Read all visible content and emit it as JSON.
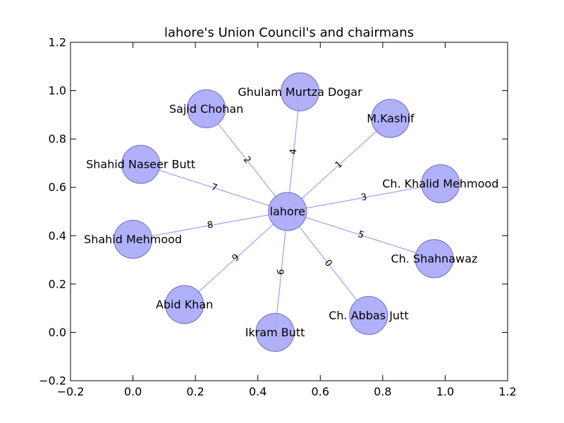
{
  "chart_data": {
    "type": "network",
    "title": "lahore's Union Council's and chairmans",
    "xlim": [
      -0.2,
      1.2
    ],
    "ylim": [
      -0.2,
      1.2
    ],
    "xticks": [
      "−0.2",
      "0.0",
      "0.2",
      "0.4",
      "0.6",
      "0.8",
      "1.0",
      "1.2"
    ],
    "yticks": [
      "−0.2",
      "0.0",
      "0.2",
      "0.4",
      "0.6",
      "0.8",
      "1.0",
      "1.2"
    ],
    "node_color": "#a8a8f8",
    "node_edge_color": "#7a7acc",
    "edge_color": "#8888ee",
    "center": {
      "label": "lahore",
      "x": 0.495,
      "y": 0.5
    },
    "nodes": [
      {
        "label": "Ch. Abbas Jutt",
        "x": 0.755,
        "y": 0.07,
        "edge_label": "0"
      },
      {
        "label": "M.Kashif",
        "x": 0.825,
        "y": 0.885,
        "edge_label": "1"
      },
      {
        "label": "Sajid Chohan",
        "x": 0.235,
        "y": 0.925,
        "edge_label": "2"
      },
      {
        "label": "Ch. Khalid Mehmood",
        "x": 0.985,
        "y": 0.615,
        "edge_label": "3"
      },
      {
        "label": "Ghulam Murtza Dogar",
        "x": 0.535,
        "y": 0.995,
        "edge_label": "4"
      },
      {
        "label": "Ch. Shahnawaz",
        "x": 0.965,
        "y": 0.305,
        "edge_label": "5"
      },
      {
        "label": "Ikram Butt",
        "x": 0.455,
        "y": 0.0,
        "edge_label": "6"
      },
      {
        "label": "Shahid Naseer Butt",
        "x": 0.025,
        "y": 0.695,
        "edge_label": "7"
      },
      {
        "label": "Shahid Mehmood",
        "x": 0.0,
        "y": 0.385,
        "edge_label": "8"
      },
      {
        "label": "Abid Khan",
        "x": 0.165,
        "y": 0.115,
        "edge_label": "9"
      }
    ]
  }
}
